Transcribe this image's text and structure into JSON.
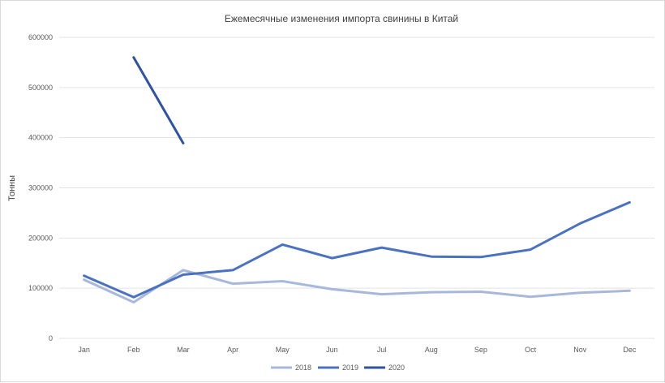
{
  "chart_data": {
    "type": "line",
    "title": "Ежемесячные изменения импорта свинины в Китай",
    "xlabel": "",
    "ylabel": "Тонны",
    "categories": [
      "Jan",
      "Feb",
      "Mar",
      "Apr",
      "May",
      "Jun",
      "Jul",
      "Aug",
      "Sep",
      "Oct",
      "Nov",
      "Dec"
    ],
    "ylim": [
      0,
      600000
    ],
    "yticks": [
      "0",
      "100000",
      "200000",
      "300000",
      "400000",
      "500000",
      "600000"
    ],
    "grid": true,
    "legend_position": "bottom",
    "series": [
      {
        "name": "2018",
        "color": "#a8b8dc",
        "values": [
          117000,
          72000,
          136000,
          109000,
          114000,
          98000,
          88000,
          92000,
          93000,
          83000,
          91000,
          95000
        ]
      },
      {
        "name": "2019",
        "color": "#4a72c0",
        "values": [
          125000,
          82000,
          127000,
          136000,
          187000,
          160000,
          181000,
          163000,
          162000,
          177000,
          229000,
          271000
        ]
      },
      {
        "name": "2020",
        "color": "#2e53a3",
        "values": [
          null,
          560000,
          389000,
          null,
          null,
          null,
          null,
          null,
          null,
          null,
          null,
          null
        ]
      }
    ]
  }
}
